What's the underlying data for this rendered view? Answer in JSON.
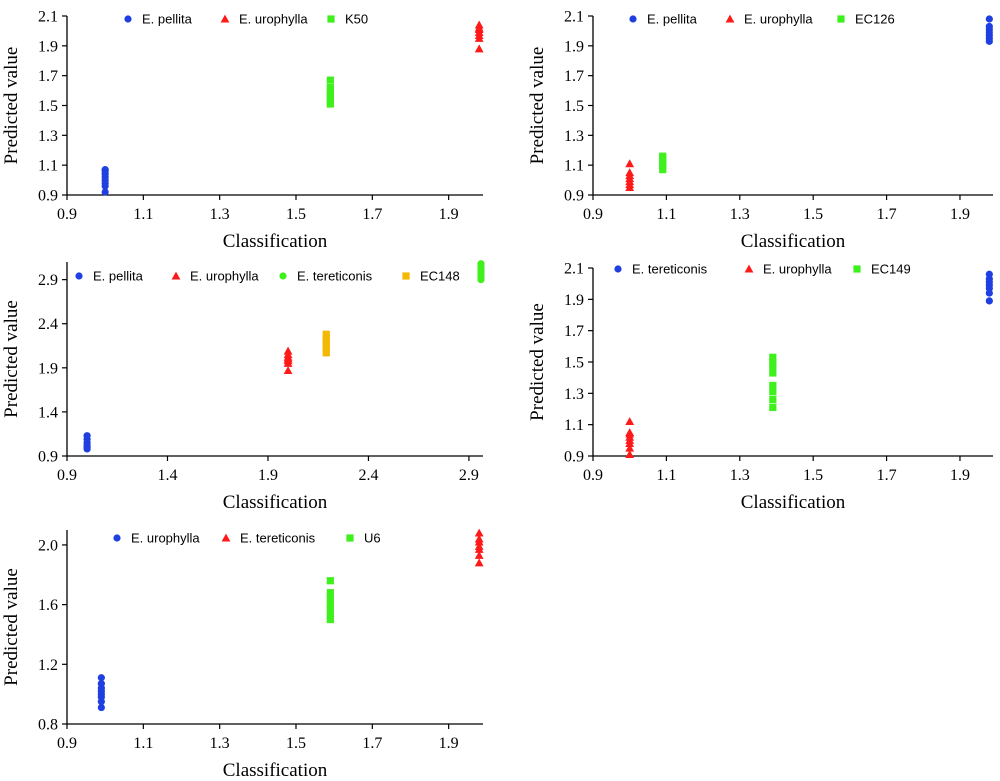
{
  "colors": {
    "blue": "#1f3fe0",
    "red": "#ff1a1a",
    "green": "#3ef01c",
    "orange": "#f5b800"
  },
  "chart_data": [
    {
      "type": "scatter",
      "xlabel": "Classification",
      "ylabel": "Predicted value",
      "xlim": [
        0.9,
        1.99
      ],
      "ylim": [
        0.9,
        2.1
      ],
      "xticks": [
        "0.9",
        "1.1",
        "1.3",
        "1.5",
        "1.7",
        "1.9"
      ],
      "yticks": [
        "0.9",
        "1.1",
        "1.3",
        "1.5",
        "1.7",
        "1.9",
        "2.1"
      ],
      "series": [
        {
          "name": "E. pellita",
          "marker": "circle",
          "color": "#1f3fe0",
          "x": [
            1.0,
            1.0,
            1.0,
            1.0,
            1.0,
            1.0,
            1.0,
            1.0
          ],
          "y": [
            0.92,
            0.96,
            0.98,
            1.0,
            1.02,
            1.04,
            1.06,
            1.07
          ]
        },
        {
          "name": "E. urophylla",
          "marker": "triangle",
          "color": "#ff1a1a",
          "x": [
            1.98,
            1.98,
            1.98,
            1.98,
            1.98,
            1.98,
            1.98
          ],
          "y": [
            1.88,
            1.95,
            1.97,
            1.99,
            2.01,
            2.02,
            2.04
          ]
        },
        {
          "name": "K50",
          "marker": "square",
          "color": "#3ef01c",
          "x": [
            1.59,
            1.59,
            1.59,
            1.59,
            1.59,
            1.59,
            1.59
          ],
          "y": [
            1.51,
            1.53,
            1.55,
            1.57,
            1.59,
            1.62,
            1.67
          ]
        }
      ]
    },
    {
      "type": "scatter",
      "xlabel": "Classification",
      "ylabel": "Predicted value",
      "xlim": [
        0.9,
        1.99
      ],
      "ylim": [
        0.9,
        2.1
      ],
      "xticks": [
        "0.9",
        "1.1",
        "1.3",
        "1.5",
        "1.7",
        "1.9"
      ],
      "yticks": [
        "0.9",
        "1.1",
        "1.3",
        "1.5",
        "1.7",
        "1.9",
        "2.1"
      ],
      "series": [
        {
          "name": "E. pellita",
          "marker": "circle",
          "color": "#1f3fe0",
          "x": [
            1.98,
            1.98,
            1.98,
            1.98,
            1.98,
            1.98,
            1.98
          ],
          "y": [
            1.93,
            1.95,
            1.97,
            1.99,
            2.01,
            2.03,
            2.08
          ]
        },
        {
          "name": "E. urophylla",
          "marker": "triangle",
          "color": "#ff1a1a",
          "x": [
            1.0,
            1.0,
            1.0,
            1.0,
            1.0,
            1.0,
            1.0
          ],
          "y": [
            0.95,
            0.97,
            0.99,
            1.01,
            1.03,
            1.05,
            1.11
          ]
        },
        {
          "name": "EC126",
          "marker": "square",
          "color": "#3ef01c",
          "x": [
            1.09,
            1.09,
            1.09,
            1.09,
            1.09,
            1.09
          ],
          "y": [
            1.07,
            1.09,
            1.11,
            1.13,
            1.15,
            1.16
          ]
        }
      ]
    },
    {
      "type": "scatter",
      "xlabel": "Classification",
      "ylabel": "Predicted value",
      "xlim": [
        0.9,
        2.97
      ],
      "ylim": [
        0.9,
        3.1
      ],
      "xticks": [
        "0.9",
        "1.4",
        "1.9",
        "2.4",
        "2.9"
      ],
      "yticks": [
        "0.9",
        "1.4",
        "1.9",
        "2.4",
        "2.9"
      ],
      "series": [
        {
          "name": "E. pellita",
          "marker": "circle",
          "color": "#1f3fe0",
          "x": [
            1.0,
            1.0,
            1.0,
            1.0,
            1.0,
            1.0
          ],
          "y": [
            0.98,
            1.0,
            1.02,
            1.05,
            1.09,
            1.13
          ]
        },
        {
          "name": "E. urophylla",
          "marker": "triangle",
          "color": "#ff1a1a",
          "x": [
            2.0,
            2.0,
            2.0,
            2.0,
            2.0,
            2.0,
            2.0
          ],
          "y": [
            1.87,
            1.95,
            1.98,
            2.0,
            2.02,
            2.05,
            2.09
          ]
        },
        {
          "name": "E. tereticonis",
          "marker": "circle",
          "color": "#3ef01c",
          "x": [
            2.96,
            2.96,
            2.96,
            2.96,
            2.96,
            2.96,
            2.96
          ],
          "y": [
            2.9,
            2.93,
            2.96,
            2.99,
            3.02,
            3.05,
            3.08
          ]
        },
        {
          "name": "EC148",
          "marker": "square",
          "color": "#f5b800",
          "x": [
            2.19,
            2.19,
            2.19,
            2.19,
            2.19,
            2.19
          ],
          "y": [
            2.07,
            2.12,
            2.16,
            2.2,
            2.24,
            2.28
          ]
        }
      ]
    },
    {
      "type": "scatter",
      "xlabel": "Classification",
      "ylabel": "Predicted value",
      "xlim": [
        0.9,
        1.99
      ],
      "ylim": [
        0.9,
        2.1
      ],
      "xticks": [
        "0.9",
        "1.1",
        "1.3",
        "1.5",
        "1.7",
        "1.9"
      ],
      "yticks": [
        "0.9",
        "1.1",
        "1.3",
        "1.5",
        "1.7",
        "1.9",
        "2.1"
      ],
      "series": [
        {
          "name": "E. tereticonis",
          "marker": "circle",
          "color": "#1f3fe0",
          "x": [
            1.98,
            1.98,
            1.98,
            1.98,
            1.98,
            1.98,
            1.98
          ],
          "y": [
            1.89,
            1.94,
            1.97,
            1.99,
            2.01,
            2.03,
            2.06
          ]
        },
        {
          "name": "E. urophylla",
          "marker": "triangle",
          "color": "#ff1a1a",
          "x": [
            1.0,
            1.0,
            1.0,
            1.0,
            1.0,
            1.0,
            1.0,
            1.0
          ],
          "y": [
            0.91,
            0.95,
            0.98,
            1.0,
            1.02,
            1.04,
            1.05,
            1.12
          ]
        },
        {
          "name": "EC149",
          "marker": "square",
          "color": "#3ef01c",
          "x": [
            1.39,
            1.39,
            1.39,
            1.39,
            1.39,
            1.39,
            1.39,
            1.39
          ],
          "y": [
            1.21,
            1.26,
            1.31,
            1.35,
            1.43,
            1.47,
            1.5,
            1.53
          ]
        }
      ]
    },
    {
      "type": "scatter",
      "xlabel": "Classification",
      "ylabel": "Predicted value",
      "xlim": [
        0.9,
        1.99
      ],
      "ylim": [
        0.8,
        2.1
      ],
      "xticks": [
        "0.9",
        "1.1",
        "1.3",
        "1.5",
        "1.7",
        "1.9"
      ],
      "yticks": [
        "0.8",
        "1.2",
        "1.6",
        "2.0"
      ],
      "series": [
        {
          "name": "E. urophylla",
          "marker": "circle",
          "color": "#1f3fe0",
          "x": [
            0.99,
            0.99,
            0.99,
            0.99,
            0.99,
            0.99,
            0.99,
            0.99
          ],
          "y": [
            0.91,
            0.95,
            0.98,
            1.0,
            1.02,
            1.04,
            1.07,
            1.11
          ]
        },
        {
          "name": "E. tereticonis",
          "marker": "triangle",
          "color": "#ff1a1a",
          "x": [
            1.98,
            1.98,
            1.98,
            1.98,
            1.98,
            1.98,
            1.98
          ],
          "y": [
            1.88,
            1.93,
            1.97,
            1.99,
            2.02,
            2.04,
            2.08
          ]
        },
        {
          "name": "U6",
          "marker": "square",
          "color": "#3ef01c",
          "x": [
            1.59,
            1.59,
            1.59,
            1.59,
            1.59,
            1.59,
            1.59
          ],
          "y": [
            1.5,
            1.53,
            1.57,
            1.6,
            1.64,
            1.68,
            1.76
          ]
        }
      ]
    }
  ]
}
